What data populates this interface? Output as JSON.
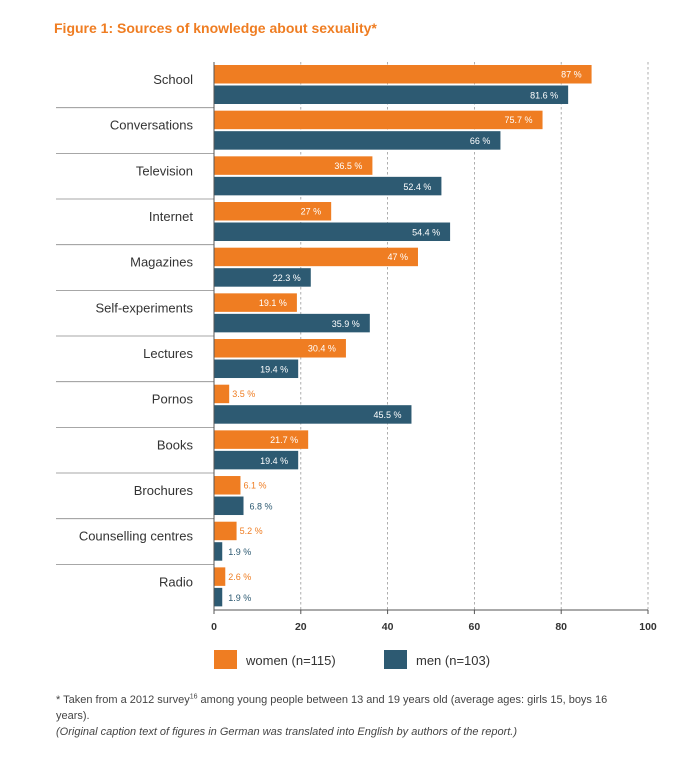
{
  "figure_title": "Figure 1: Sources of knowledge about sexuality*",
  "footnote": {
    "before_ref": "* Taken from a 2012 survey",
    "ref": "16",
    "after_ref": " among young people between 13 and 19 years old (average ages: girls 15, boys 16 years).",
    "caption_note": "(Original caption text of figures in German was translated into English by authors of the report.)"
  },
  "colors": {
    "women": "#ef7d22",
    "men": "#2d5a72"
  },
  "chart_data": {
    "type": "bar",
    "orientation": "horizontal",
    "title": "Figure 1: Sources of knowledge about sexuality*",
    "categories": [
      "School",
      "Conversations",
      "Television",
      "Internet",
      "Magazines",
      "Self-experiments",
      "Lectures",
      "Pornos",
      "Books",
      "Brochures",
      "Counselling centres",
      "Radio"
    ],
    "series": [
      {
        "name": "women (n=115)",
        "values": [
          87,
          75.7,
          36.5,
          27,
          47,
          19.1,
          30.4,
          3.5,
          21.7,
          6.1,
          5.2,
          2.6
        ],
        "labels": [
          "87 %",
          "75.7 %",
          "36.5 %",
          "27 %",
          "47 %",
          "19.1 %",
          "30.4 %",
          "3.5 %",
          "21.7 %",
          "6.1 %",
          "5.2 %",
          "2.6 %"
        ]
      },
      {
        "name": "men (n=103)",
        "values": [
          81.6,
          66,
          52.4,
          54.4,
          22.3,
          35.9,
          19.4,
          45.5,
          19.4,
          6.8,
          1.9,
          1.9
        ],
        "labels": [
          "81.6 %",
          "66 %",
          "52.4 %",
          "54.4 %",
          "22.3 %",
          "35.9 %",
          "19.4 %",
          "45.5 %",
          "19.4 %",
          "6.8 %",
          "1.9 %",
          "1.9 %"
        ]
      }
    ],
    "xlim": [
      0,
      100
    ],
    "xticks": [
      0,
      20,
      40,
      60,
      80,
      100
    ],
    "xtick_labels": [
      "0",
      "20",
      "40",
      "60",
      "80",
      "100"
    ],
    "grid": "vertical dashed",
    "legend_position": "bottom"
  }
}
